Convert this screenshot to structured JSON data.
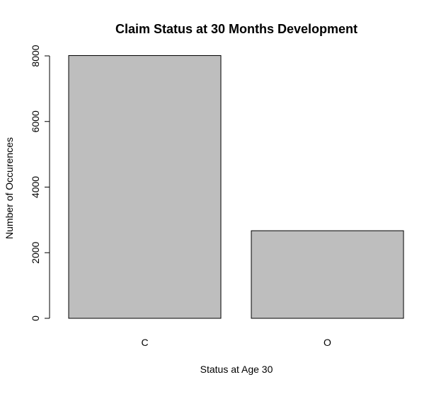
{
  "chart_data": {
    "type": "bar",
    "title": "Claim Status at 30 Months Development",
    "xlabel": "Status at Age 30",
    "ylabel": "Number of Occurences",
    "categories": [
      "C",
      "O"
    ],
    "values": [
      8010,
      2670
    ],
    "ylim": [
      0,
      8000
    ],
    "yticks": [
      "0",
      "2000",
      "4000",
      "6000",
      "8000"
    ],
    "grid": false,
    "legend": "none",
    "bar_fill": "#bebebe",
    "bar_stroke": "#000000"
  }
}
